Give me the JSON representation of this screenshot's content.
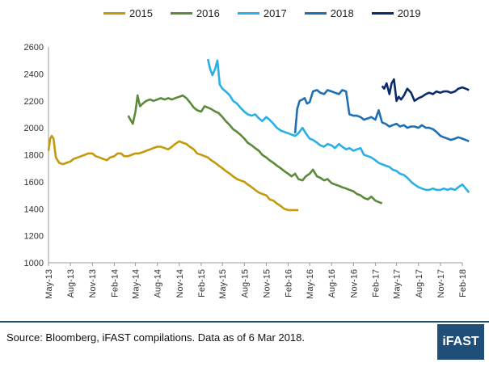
{
  "chart_data": {
    "type": "line",
    "xlabel": "",
    "ylabel": "",
    "ylim": [
      1000,
      2600
    ],
    "yticks": [
      1000,
      1200,
      1400,
      1600,
      1800,
      2000,
      2200,
      2400,
      2600
    ],
    "x_tick_labels": [
      "May-13",
      "Aug-13",
      "Nov-13",
      "Feb-14",
      "May-14",
      "Aug-14",
      "Nov-14",
      "Feb-15",
      "May-15",
      "Aug-15",
      "Nov-15",
      "Feb-16",
      "May-16",
      "Aug-16",
      "Nov-16",
      "Feb-17",
      "May-17",
      "Aug-17",
      "Nov-17",
      "Feb-18"
    ],
    "legend_position": "top",
    "grid": false,
    "series": [
      {
        "name": "2015",
        "color": "#c49a0c",
        "x": [
          "2013-05-01",
          "2013-05-08",
          "2013-05-15",
          "2013-05-22",
          "2013-06-01",
          "2013-06-15",
          "2013-07-01",
          "2013-07-15",
          "2013-08-01",
          "2013-08-15",
          "2013-09-01",
          "2013-09-15",
          "2013-10-01",
          "2013-10-15",
          "2013-11-01",
          "2013-11-15",
          "2013-12-01",
          "2013-12-15",
          "2014-01-01",
          "2014-01-15",
          "2014-02-01",
          "2014-02-15",
          "2014-03-01",
          "2014-03-15",
          "2014-04-01",
          "2014-04-15",
          "2014-05-01",
          "2014-05-15",
          "2014-06-01",
          "2014-06-15",
          "2014-07-01",
          "2014-07-15",
          "2014-08-01",
          "2014-08-15",
          "2014-09-01",
          "2014-09-15",
          "2014-10-01",
          "2014-10-15",
          "2014-11-01",
          "2014-11-15",
          "2014-12-01",
          "2014-12-15",
          "2015-01-01",
          "2015-01-15",
          "2015-02-01",
          "2015-02-15",
          "2015-03-01",
          "2015-03-15",
          "2015-04-01",
          "2015-04-15",
          "2015-05-01",
          "2015-05-15",
          "2015-06-01",
          "2015-06-15",
          "2015-07-01",
          "2015-07-15",
          "2015-08-01",
          "2015-08-15",
          "2015-09-01",
          "2015-09-15",
          "2015-10-01",
          "2015-10-15",
          "2015-11-01",
          "2015-11-15",
          "2015-12-01",
          "2015-12-15",
          "2016-01-01",
          "2016-01-15",
          "2016-02-01",
          "2016-02-15",
          "2016-03-01",
          "2016-03-15"
        ],
        "y": [
          1830,
          1920,
          1940,
          1920,
          1780,
          1740,
          1730,
          1740,
          1750,
          1770,
          1780,
          1790,
          1800,
          1810,
          1810,
          1790,
          1780,
          1770,
          1760,
          1780,
          1790,
          1810,
          1810,
          1790,
          1790,
          1800,
          1810,
          1810,
          1820,
          1830,
          1840,
          1850,
          1860,
          1860,
          1850,
          1840,
          1860,
          1880,
          1900,
          1890,
          1880,
          1860,
          1840,
          1810,
          1800,
          1790,
          1780,
          1760,
          1740,
          1720,
          1700,
          1680,
          1660,
          1640,
          1620,
          1610,
          1600,
          1580,
          1560,
          1540,
          1520,
          1510,
          1500,
          1470,
          1460,
          1440,
          1420,
          1400,
          1390,
          1390,
          1390,
          1390
        ]
      },
      {
        "name": "2016",
        "color": "#5b8a3a",
        "x": [
          "2014-04-01",
          "2014-04-10",
          "2014-04-20",
          "2014-05-01",
          "2014-05-10",
          "2014-05-20",
          "2014-06-01",
          "2014-06-15",
          "2014-07-01",
          "2014-07-15",
          "2014-08-01",
          "2014-08-15",
          "2014-09-01",
          "2014-09-15",
          "2014-10-01",
          "2014-10-15",
          "2014-11-01",
          "2014-11-15",
          "2014-12-01",
          "2014-12-15",
          "2015-01-01",
          "2015-01-15",
          "2015-02-01",
          "2015-02-15",
          "2015-03-01",
          "2015-03-15",
          "2015-04-01",
          "2015-04-15",
          "2015-05-01",
          "2015-05-15",
          "2015-06-01",
          "2015-06-15",
          "2015-07-01",
          "2015-07-15",
          "2015-08-01",
          "2015-08-15",
          "2015-09-01",
          "2015-09-15",
          "2015-10-01",
          "2015-10-15",
          "2015-11-01",
          "2015-11-15",
          "2015-12-01",
          "2015-12-15",
          "2016-01-01",
          "2016-01-15",
          "2016-02-01",
          "2016-02-15",
          "2016-03-01",
          "2016-03-15",
          "2016-04-01",
          "2016-04-15",
          "2016-05-01",
          "2016-05-15",
          "2016-06-01",
          "2016-06-15",
          "2016-07-01",
          "2016-07-15",
          "2016-08-01",
          "2016-08-15",
          "2016-09-01",
          "2016-09-15",
          "2016-10-01",
          "2016-10-15",
          "2016-11-01",
          "2016-11-15",
          "2016-12-01",
          "2016-12-15",
          "2017-01-01",
          "2017-01-15",
          "2017-02-01",
          "2017-02-15",
          "2017-03-01"
        ],
        "y": [
          2090,
          2060,
          2030,
          2120,
          2240,
          2160,
          2180,
          2200,
          2210,
          2200,
          2210,
          2220,
          2210,
          2220,
          2210,
          2220,
          2230,
          2240,
          2220,
          2190,
          2150,
          2130,
          2120,
          2160,
          2150,
          2140,
          2120,
          2110,
          2080,
          2050,
          2020,
          1990,
          1970,
          1950,
          1920,
          1890,
          1870,
          1850,
          1830,
          1800,
          1780,
          1760,
          1740,
          1720,
          1700,
          1680,
          1660,
          1640,
          1660,
          1620,
          1610,
          1640,
          1660,
          1690,
          1640,
          1630,
          1610,
          1620,
          1590,
          1580,
          1570,
          1560,
          1550,
          1540,
          1530,
          1510,
          1500,
          1480,
          1470,
          1490,
          1460,
          1450,
          1440
        ]
      },
      {
        "name": "2017",
        "color": "#29b0e6",
        "x": [
          "2015-03-01",
          "2015-03-10",
          "2015-03-20",
          "2015-04-01",
          "2015-04-10",
          "2015-04-20",
          "2015-05-01",
          "2015-05-15",
          "2015-06-01",
          "2015-06-15",
          "2015-07-01",
          "2015-07-15",
          "2015-08-01",
          "2015-08-15",
          "2015-09-01",
          "2015-09-15",
          "2015-10-01",
          "2015-10-15",
          "2015-11-01",
          "2015-11-15",
          "2015-12-01",
          "2015-12-15",
          "2016-01-01",
          "2016-01-15",
          "2016-02-01",
          "2016-02-15",
          "2016-03-01",
          "2016-03-15",
          "2016-04-01",
          "2016-04-15",
          "2016-05-01",
          "2016-05-15",
          "2016-06-01",
          "2016-06-15",
          "2016-07-01",
          "2016-07-15",
          "2016-08-01",
          "2016-08-15",
          "2016-09-01",
          "2016-09-15",
          "2016-10-01",
          "2016-10-15",
          "2016-11-01",
          "2016-11-15",
          "2016-12-01",
          "2016-12-15",
          "2017-01-01",
          "2017-01-15",
          "2017-02-01",
          "2017-02-15",
          "2017-03-01",
          "2017-03-15",
          "2017-04-01",
          "2017-04-15",
          "2017-05-01",
          "2017-05-15",
          "2017-06-01",
          "2017-06-15",
          "2017-07-01",
          "2017-07-15",
          "2017-08-01",
          "2017-08-15",
          "2017-09-01",
          "2017-09-15",
          "2017-10-01",
          "2017-10-15",
          "2017-11-01",
          "2017-11-15",
          "2017-12-01",
          "2017-12-15",
          "2018-01-01",
          "2018-01-15",
          "2018-02-01",
          "2018-02-15",
          "2018-03-01"
        ],
        "y": [
          2510,
          2440,
          2390,
          2440,
          2500,
          2320,
          2290,
          2270,
          2240,
          2200,
          2180,
          2150,
          2120,
          2100,
          2090,
          2100,
          2070,
          2050,
          2080,
          2060,
          2030,
          2000,
          1980,
          1970,
          1960,
          1950,
          1940,
          1960,
          2000,
          1960,
          1920,
          1910,
          1890,
          1870,
          1860,
          1880,
          1870,
          1850,
          1880,
          1860,
          1840,
          1850,
          1830,
          1840,
          1850,
          1800,
          1790,
          1780,
          1760,
          1740,
          1730,
          1720,
          1710,
          1690,
          1680,
          1660,
          1650,
          1630,
          1600,
          1580,
          1560,
          1550,
          1540,
          1540,
          1550,
          1540,
          1540,
          1550,
          1540,
          1550,
          1540,
          1560,
          1580,
          1550,
          1520
        ]
      },
      {
        "name": "2018",
        "color": "#1f6fb2",
        "x": [
          "2016-03-01",
          "2016-03-10",
          "2016-03-20",
          "2016-04-01",
          "2016-04-10",
          "2016-04-20",
          "2016-05-01",
          "2016-05-15",
          "2016-06-01",
          "2016-06-15",
          "2016-07-01",
          "2016-07-15",
          "2016-08-01",
          "2016-08-15",
          "2016-09-01",
          "2016-09-15",
          "2016-10-01",
          "2016-10-15",
          "2016-11-01",
          "2016-11-15",
          "2016-12-01",
          "2016-12-15",
          "2017-01-01",
          "2017-01-15",
          "2017-02-01",
          "2017-02-15",
          "2017-03-01",
          "2017-03-15",
          "2017-04-01",
          "2017-04-15",
          "2017-05-01",
          "2017-05-15",
          "2017-06-01",
          "2017-06-15",
          "2017-07-01",
          "2017-07-15",
          "2017-08-01",
          "2017-08-15",
          "2017-09-01",
          "2017-09-15",
          "2017-10-01",
          "2017-10-15",
          "2017-11-01",
          "2017-11-15",
          "2017-12-01",
          "2017-12-15",
          "2018-01-01",
          "2018-01-15",
          "2018-02-01",
          "2018-02-15",
          "2018-03-01"
        ],
        "y": [
          1960,
          2140,
          2200,
          2210,
          2220,
          2180,
          2190,
          2270,
          2280,
          2260,
          2250,
          2280,
          2270,
          2260,
          2250,
          2280,
          2270,
          2100,
          2090,
          2090,
          2080,
          2060,
          2070,
          2080,
          2060,
          2130,
          2040,
          2030,
          2010,
          2020,
          2030,
          2010,
          2020,
          2000,
          2010,
          2010,
          2000,
          2020,
          2000,
          2000,
          1990,
          1970,
          1940,
          1930,
          1920,
          1910,
          1920,
          1930,
          1920,
          1910,
          1900
        ]
      },
      {
        "name": "2019",
        "color": "#0b2a6b",
        "x": [
          "2017-03-01",
          "2017-03-10",
          "2017-03-20",
          "2017-04-01",
          "2017-04-10",
          "2017-04-20",
          "2017-05-01",
          "2017-05-10",
          "2017-05-20",
          "2017-06-01",
          "2017-06-15",
          "2017-07-01",
          "2017-07-15",
          "2017-08-01",
          "2017-08-15",
          "2017-09-01",
          "2017-09-15",
          "2017-10-01",
          "2017-10-15",
          "2017-11-01",
          "2017-11-15",
          "2017-12-01",
          "2017-12-15",
          "2018-01-01",
          "2018-01-15",
          "2018-02-01",
          "2018-02-15",
          "2018-03-01"
        ],
        "y": [
          2310,
          2290,
          2330,
          2250,
          2330,
          2360,
          2200,
          2230,
          2210,
          2240,
          2290,
          2260,
          2200,
          2220,
          2230,
          2250,
          2260,
          2250,
          2270,
          2260,
          2270,
          2270,
          2260,
          2270,
          2290,
          2300,
          2290,
          2280
        ]
      }
    ]
  },
  "footer": {
    "source": "Source: Bloomberg, iFAST compilations. Data as of 6 Mar 2018.",
    "logo_text": "iFAST"
  },
  "colors": {
    "footer_rule": "#1f4e79",
    "logo_background": "#1f4e79"
  }
}
